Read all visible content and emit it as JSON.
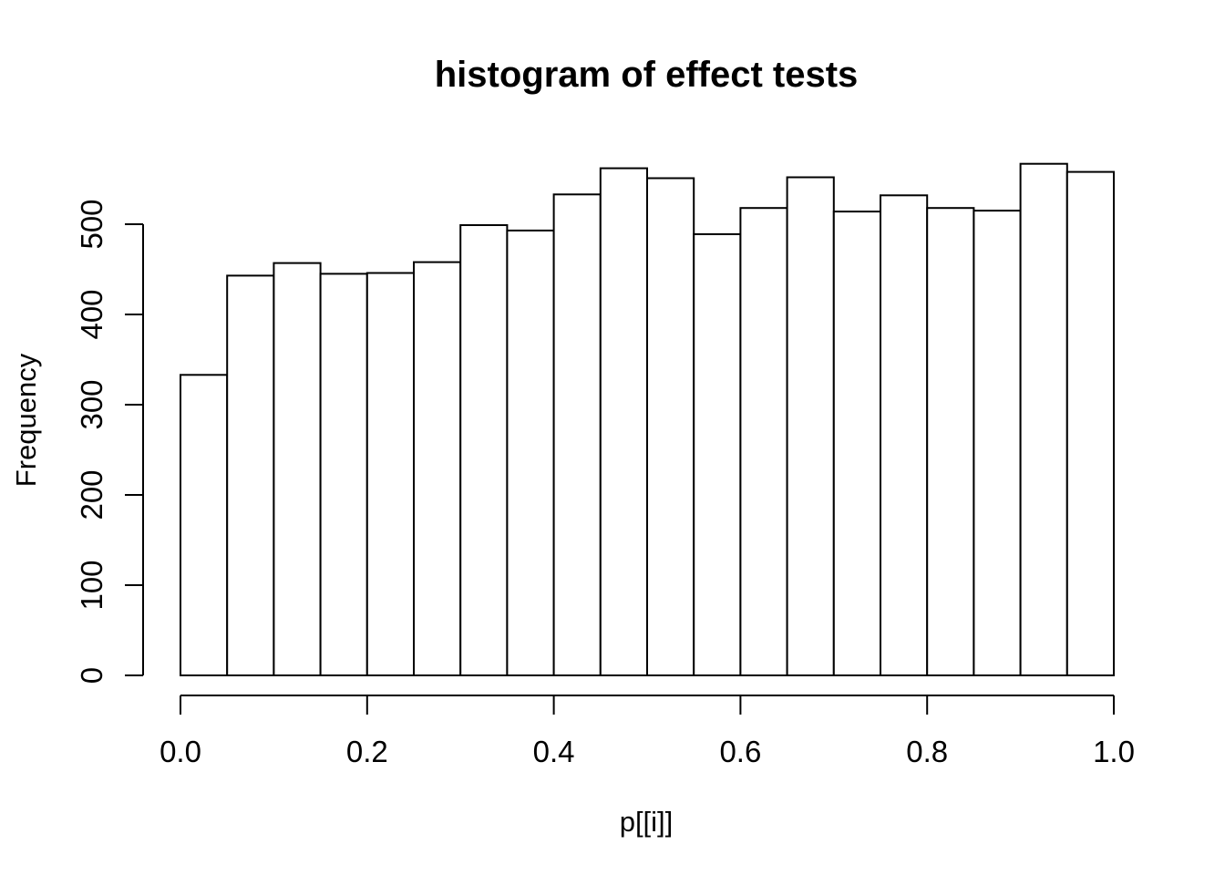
{
  "window": {
    "background_color": "#ffffff",
    "text_color": "#000000"
  },
  "chart_data": {
    "type": "bar",
    "subtype": "histogram",
    "title": "histogram of effect tests",
    "xlabel": "p[[i]]",
    "ylabel": "Frequency",
    "xlim": [
      0.0,
      1.0
    ],
    "ylim": [
      0,
      500
    ],
    "bin_width": 0.05,
    "bin_starts": [
      0.0,
      0.05,
      0.1,
      0.15,
      0.2,
      0.25,
      0.3,
      0.35,
      0.4,
      0.45,
      0.5,
      0.55,
      0.6,
      0.65,
      0.7,
      0.75,
      0.8,
      0.85,
      0.9,
      0.95
    ],
    "values": [
      333,
      443,
      457,
      445,
      446,
      458,
      499,
      493,
      533,
      562,
      551,
      489,
      518,
      552,
      514,
      532,
      518,
      515,
      567,
      558
    ],
    "x_tick_values": [
      0.0,
      0.2,
      0.4,
      0.6,
      0.8,
      1.0
    ],
    "x_tick_labels": [
      "0.0",
      "0.2",
      "0.4",
      "0.6",
      "0.8",
      "1.0"
    ],
    "y_tick_values": [
      0,
      100,
      200,
      300,
      400,
      500
    ],
    "y_tick_labels": [
      "0",
      "100",
      "200",
      "300",
      "400",
      "500"
    ],
    "grid": "off",
    "legend": "none",
    "bar_fill": "#ffffff",
    "bar_stroke": "#000000",
    "axis_color": "#000000"
  }
}
